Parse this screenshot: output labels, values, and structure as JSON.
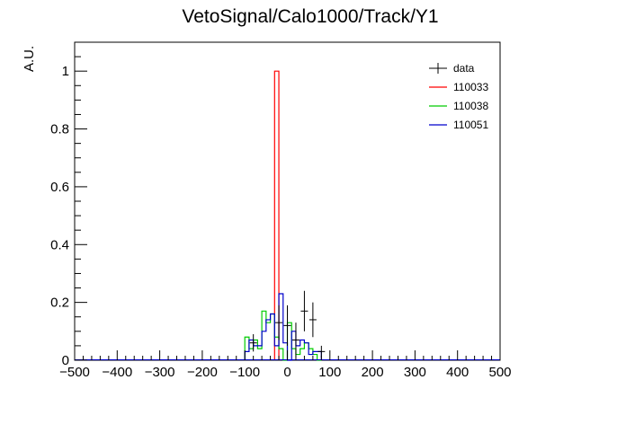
{
  "chart_data": {
    "type": "histogram",
    "title": "VetoSignal/Calo1000/Track/Y1",
    "ylabel": "A.U.",
    "xlabel": "",
    "xlim": [
      -500,
      500
    ],
    "ylim": [
      0,
      1.1
    ],
    "grid": false,
    "legend_position": "top-right",
    "x_ticks": [
      -500,
      -400,
      -300,
      -200,
      -100,
      0,
      100,
      200,
      300,
      400,
      500
    ],
    "x_tick_labels": [
      "−500",
      "−400",
      "−300",
      "−200",
      "−100",
      "0",
      "100",
      "200",
      "300",
      "400",
      "500"
    ],
    "y_ticks": [
      0,
      0.2,
      0.4,
      0.6,
      0.8,
      1
    ],
    "y_tick_labels": [
      "0",
      "0.2",
      "0.4",
      "0.6",
      "0.8",
      "1"
    ],
    "series": [
      {
        "name": "data",
        "kind": "points",
        "color": "#000000",
        "points": [
          {
            "x": -80,
            "y": 0.06,
            "err": 0.03
          },
          {
            "x": -20,
            "y": 0.13,
            "err": 0.06
          },
          {
            "x": 0,
            "y": 0.12,
            "err": 0.07
          },
          {
            "x": 20,
            "y": 0.07,
            "err": 0.06
          },
          {
            "x": 40,
            "y": 0.17,
            "err": 0.07
          },
          {
            "x": 60,
            "y": 0.14,
            "err": 0.06
          },
          {
            "x": 80,
            "y": 0.03,
            "err": 0.02
          }
        ]
      },
      {
        "name": "110033",
        "kind": "step",
        "color": "#ff0000",
        "edges": [
          -30,
          -20
        ],
        "values": [
          1.0
        ]
      },
      {
        "name": "110038",
        "kind": "step",
        "color": "#00cc00",
        "edges": [
          -100,
          -90,
          -80,
          -70,
          -60,
          -50,
          -40,
          -30,
          -20,
          -10,
          0,
          10,
          20,
          30,
          40,
          50,
          60,
          70,
          80
        ],
        "values": [
          0.08,
          0.04,
          0.07,
          0.04,
          0.17,
          0.13,
          0.16,
          0.08,
          0.04,
          0.0,
          0.13,
          0.04,
          0.02,
          0.04,
          0.06,
          0.04,
          0.02,
          0.0
        ]
      },
      {
        "name": "110051",
        "kind": "step",
        "color": "#0000cc",
        "edges": [
          -100,
          -90,
          -80,
          -70,
          -60,
          -50,
          -40,
          -30,
          -20,
          -10,
          0,
          10,
          20,
          30,
          40,
          50,
          60,
          70,
          80
        ],
        "values": [
          0.03,
          0.07,
          0.05,
          0.05,
          0.1,
          0.14,
          0.16,
          0.05,
          0.23,
          0.06,
          0.0,
          0.1,
          0.05,
          0.07,
          0.06,
          0.02,
          0.03,
          0.03
        ]
      }
    ]
  }
}
